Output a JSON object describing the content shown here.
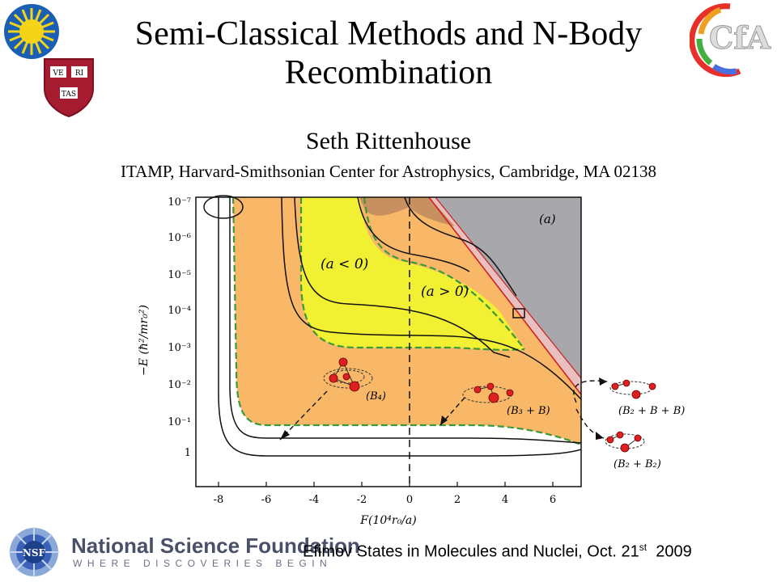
{
  "slide": {
    "title_line1": "Semi-Classical Methods and N-Body",
    "title_line2": "Recombination",
    "author": "Seth Rittenhouse",
    "affiliation": "ITAMP, Harvard-Smithsonian Center for Astrophysics, Cambridge, MA 02138",
    "footer": {
      "conference": "Efimov States in Molecules and Nuclei, Oct. 21",
      "conference_sup": "st",
      "year": "2009",
      "nsf_name": "National Science Foundation",
      "nsf_tagline": "WHERE DISCOVERIES BEGIN"
    },
    "logos": {
      "left_top": "sun-logo",
      "left_shield": "harvard-shield-logo",
      "shield_text": [
        "VE",
        "RI",
        "TAS"
      ],
      "right": "cfa-logo",
      "right_text": "CfA",
      "nsf": "nsf-logo",
      "nsf_text": "NSF"
    }
  },
  "chart_data": {
    "type": "diagram-plot",
    "panel_label": "(a)",
    "xlabel": "F(10⁴r₀/a)",
    "ylabel": "−E (ħ²/mr₀²)",
    "x_ticks": [
      "-8",
      "-6",
      "-4",
      "-2",
      "0",
      "2",
      "4",
      "6"
    ],
    "y_ticks": [
      "10⁻⁷",
      "10⁻⁶",
      "10⁻⁵",
      "10⁻⁴",
      "10⁻³",
      "10⁻²",
      "10⁻¹",
      "1"
    ],
    "region_labels": [
      "(a < 0)",
      "(a > 0)"
    ],
    "cluster_labels": [
      "(B₄)",
      "(B₃ + B)",
      "(B₂ + B + B)",
      "(B₂ + B₂)"
    ],
    "colors": {
      "orange_region": "#F8B868",
      "yellow_region": "#F2F032",
      "brown_region": "#C89060",
      "gray_region": "#A8A8AC",
      "threshold_line": "#D02020",
      "dashed_green": "#3A9A3A"
    }
  }
}
